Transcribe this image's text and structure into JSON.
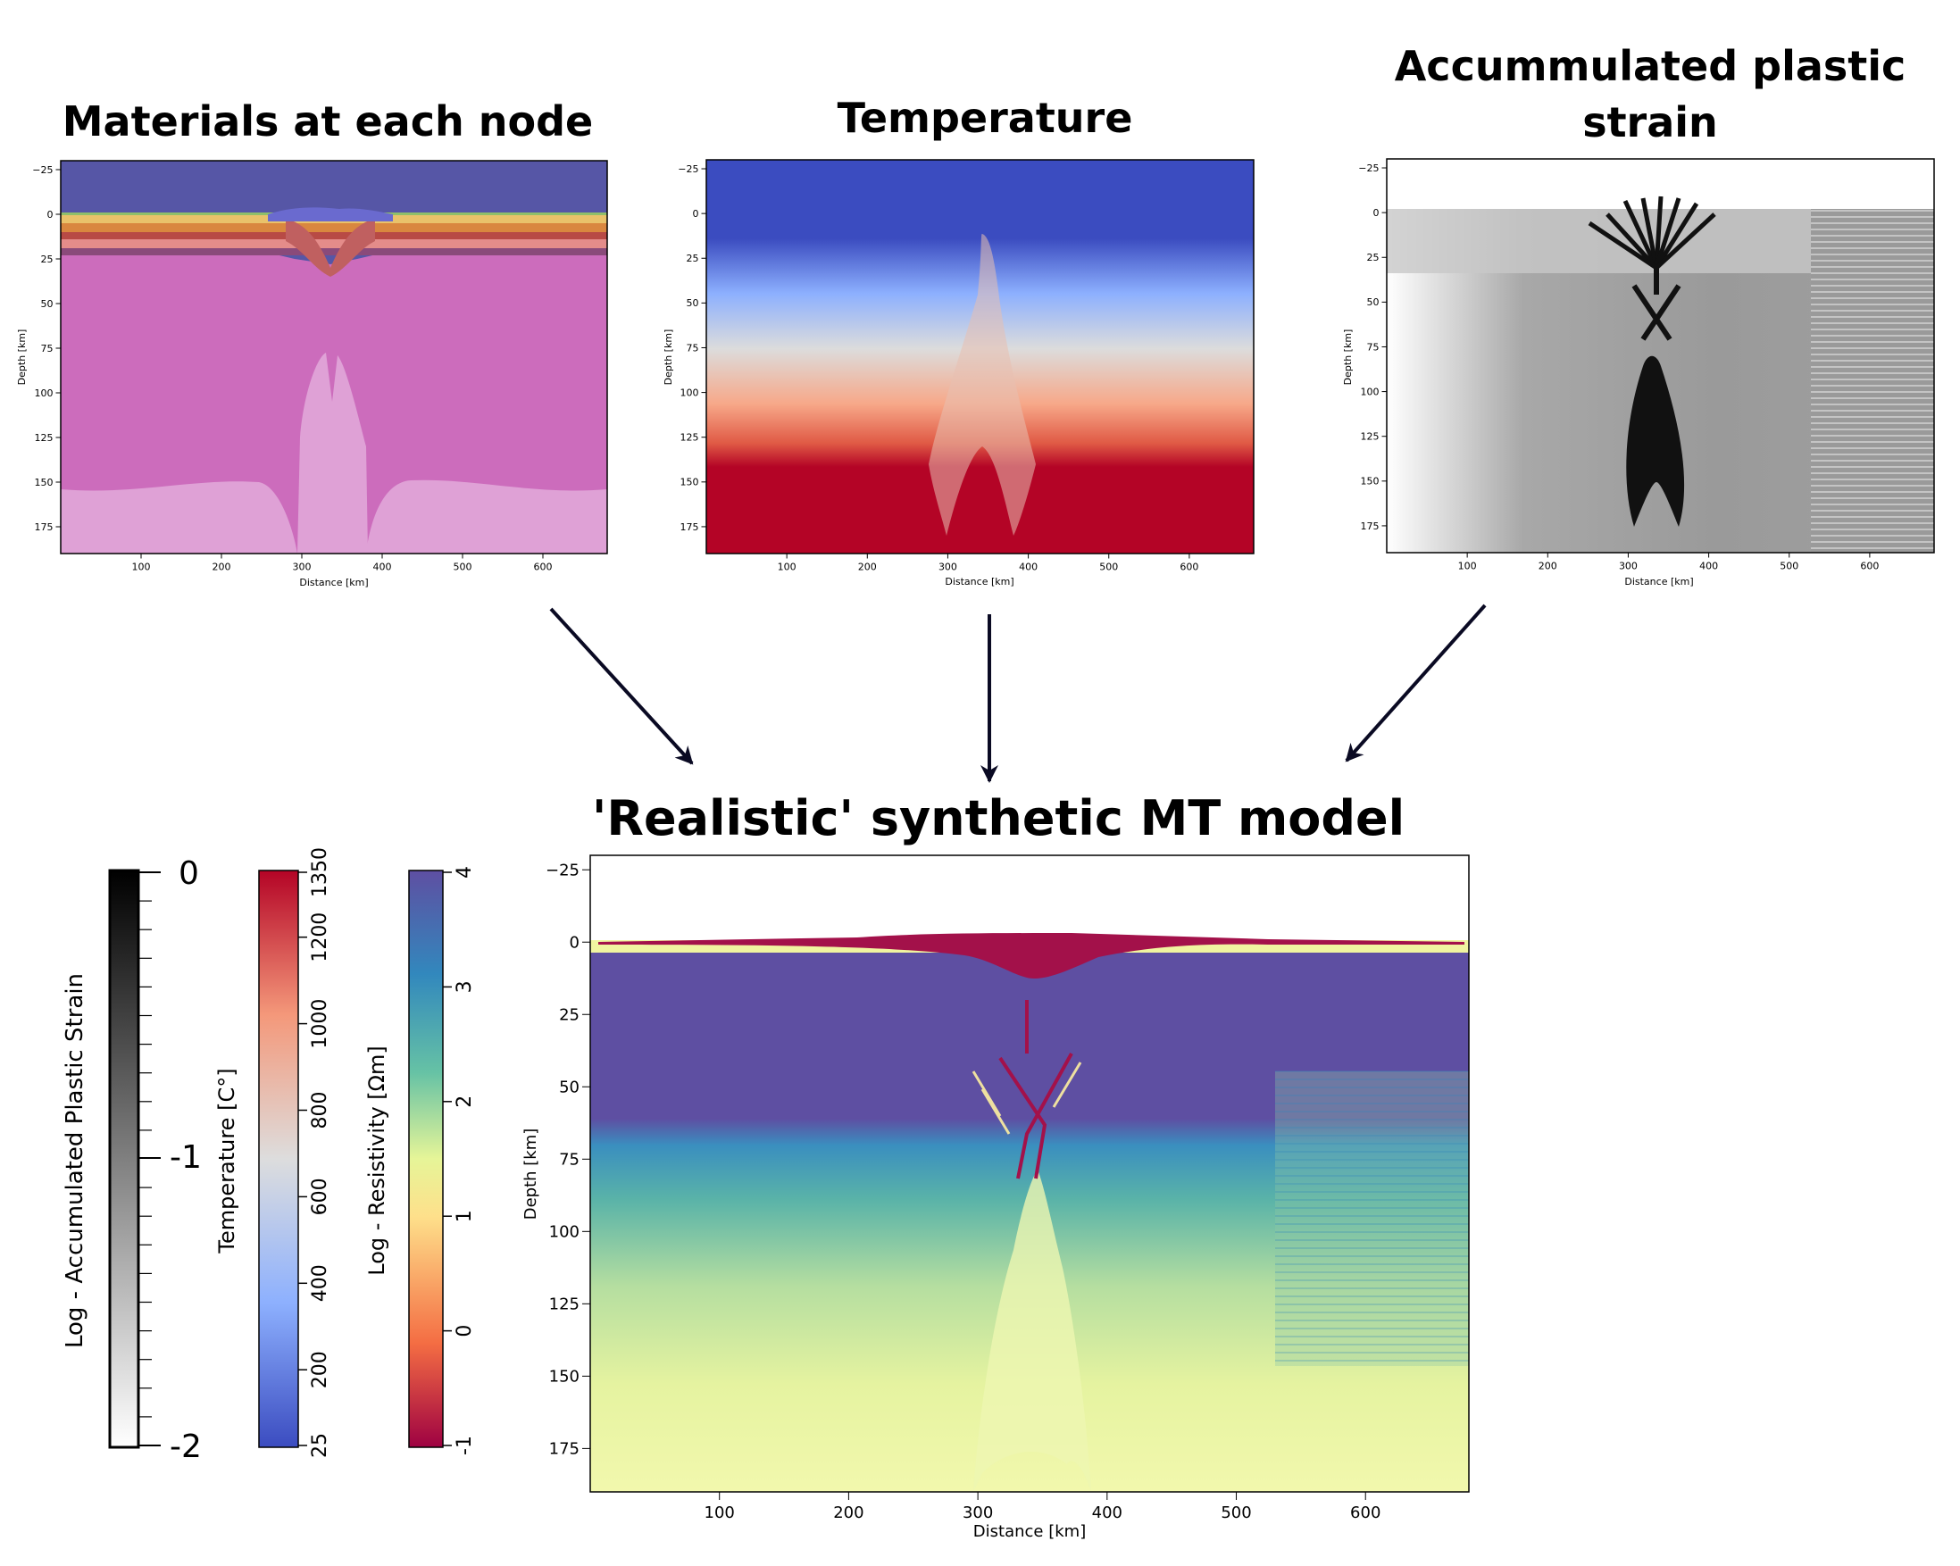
{
  "colors": {
    "arrow": "#0a0a23",
    "frame": "#000000"
  },
  "panels": {
    "materials": {
      "title": "Materials at each node",
      "xlabel": "Distance [km]",
      "ylabel": "Depth [km]",
      "colors": {
        "air": "#5656a6",
        "crust": "#d0a0c8",
        "mantle": "#cc6cbc",
        "asthenosphere": "#dfa1d6"
      }
    },
    "temperature": {
      "title": "Temperature",
      "xlabel": "Distance [km]",
      "ylabel": "Depth [km]"
    },
    "strain": {
      "title_lines": [
        "Accummulated plastic",
        "strain"
      ],
      "xlabel": "Distance [km]",
      "ylabel": "Depth [km]"
    },
    "mt": {
      "title": "'Realistic' synthetic MT model",
      "xlabel": "Distance [km]",
      "ylabel": "Depth [km]"
    }
  },
  "colorbars": {
    "strain": {
      "label": "Log - Accumulated Plastic Strain",
      "ticks": [
        "0",
        "-1",
        "-2"
      ],
      "colors": [
        "#000000",
        "#ffffff"
      ]
    },
    "temperature": {
      "label": "Temperature [C°]",
      "ticks": [
        "25",
        "200",
        "400",
        "600",
        "800",
        "1000",
        "1200",
        "1350"
      ],
      "colors": [
        "#3b4cc0",
        "#8db0fe",
        "#dddddd",
        "#f4987a",
        "#b40426"
      ]
    },
    "resistivity": {
      "label": "Log - Resistivity [Ωm]",
      "ticks": [
        "-1",
        "0",
        "1",
        "2",
        "3",
        "4"
      ],
      "colors": [
        "#9e0142",
        "#f46d43",
        "#fee08b",
        "#e6f598",
        "#66c2a5",
        "#3288bd",
        "#5e4fa2"
      ]
    }
  },
  "chart_data": [
    {
      "type": "heatmap",
      "title": "Materials at each node",
      "xlabel": "Distance [km]",
      "ylabel": "Depth [km]",
      "xlim": [
        0,
        680
      ],
      "ylim": [
        190,
        -30
      ],
      "xticks": [
        100,
        200,
        300,
        400,
        500,
        600
      ],
      "yticks": [
        -25,
        0,
        25,
        50,
        75,
        100,
        125,
        150,
        175
      ]
    },
    {
      "type": "heatmap",
      "title": "Temperature",
      "xlabel": "Distance [km]",
      "ylabel": "Depth [km]",
      "xlim": [
        0,
        680
      ],
      "ylim": [
        190,
        -30
      ],
      "xticks": [
        100,
        200,
        300,
        400,
        500,
        600
      ],
      "yticks": [
        -25,
        0,
        25,
        50,
        75,
        100,
        125,
        150,
        175
      ]
    },
    {
      "type": "heatmap",
      "title": "Accummulated plastic strain",
      "xlabel": "Distance [km]",
      "ylabel": "Depth [km]",
      "xlim": [
        0,
        680
      ],
      "ylim": [
        190,
        -30
      ],
      "xticks": [
        100,
        200,
        300,
        400,
        500,
        600
      ],
      "yticks": [
        -25,
        0,
        25,
        50,
        75,
        100,
        125,
        150,
        175
      ]
    },
    {
      "type": "heatmap",
      "title": "'Realistic' synthetic MT model",
      "xlabel": "Distance [km]",
      "ylabel": "Depth [km]",
      "xlim": [
        0,
        680
      ],
      "ylim": [
        190,
        -30
      ],
      "xticks": [
        100,
        200,
        300,
        400,
        500,
        600
      ],
      "yticks": [
        -25,
        0,
        25,
        50,
        75,
        100,
        125,
        150,
        175
      ]
    }
  ]
}
